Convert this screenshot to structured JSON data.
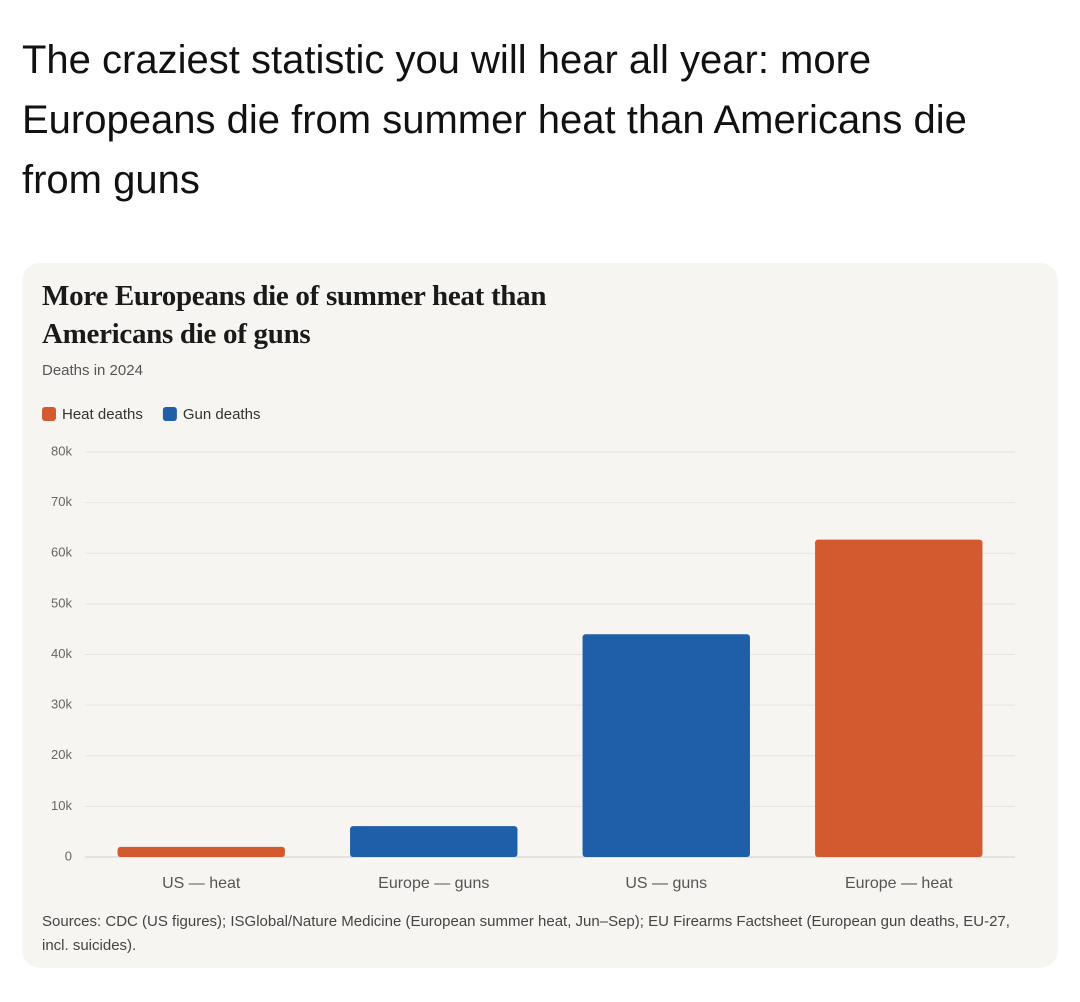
{
  "post": {
    "text": "The craziest statistic you will hear all year: more Europeans die from summer heat than Americans die from guns"
  },
  "chart_data": {
    "type": "bar",
    "title": "More Europeans die of summer heat than Americans die of guns",
    "subtitle": "Deaths in 2024",
    "categories": [
      "US — heat",
      "Europe — guns",
      "US — guns",
      "Europe — heat"
    ],
    "series": [
      {
        "name": "Heat deaths",
        "color": "#d35a2f",
        "values": [
          2000,
          null,
          null,
          62700
        ]
      },
      {
        "name": "Gun deaths",
        "color": "#1f5ea8",
        "values": [
          null,
          6100,
          44000,
          null
        ]
      }
    ],
    "ylim": [
      0,
      80000
    ],
    "yticks": [
      0,
      {
        "value": 10000,
        "label": "10k"
      },
      {
        "value": 20000,
        "label": "20k"
      },
      {
        "value": 30000,
        "label": "30k"
      },
      {
        "value": 40000,
        "label": "40k"
      },
      {
        "value": 50000,
        "label": "50k"
      },
      {
        "value": 60000,
        "label": "60k"
      },
      {
        "value": 70000,
        "label": "70k"
      },
      {
        "value": 80000,
        "label": "80k"
      }
    ],
    "grid": true,
    "legend": "top-left",
    "source": "Sources: CDC (US figures); ISGlobal/Nature Medicine (European summer heat, Jun–Sep); EU Firearms Factsheet (European gun deaths, EU-27, incl. suicides)."
  }
}
